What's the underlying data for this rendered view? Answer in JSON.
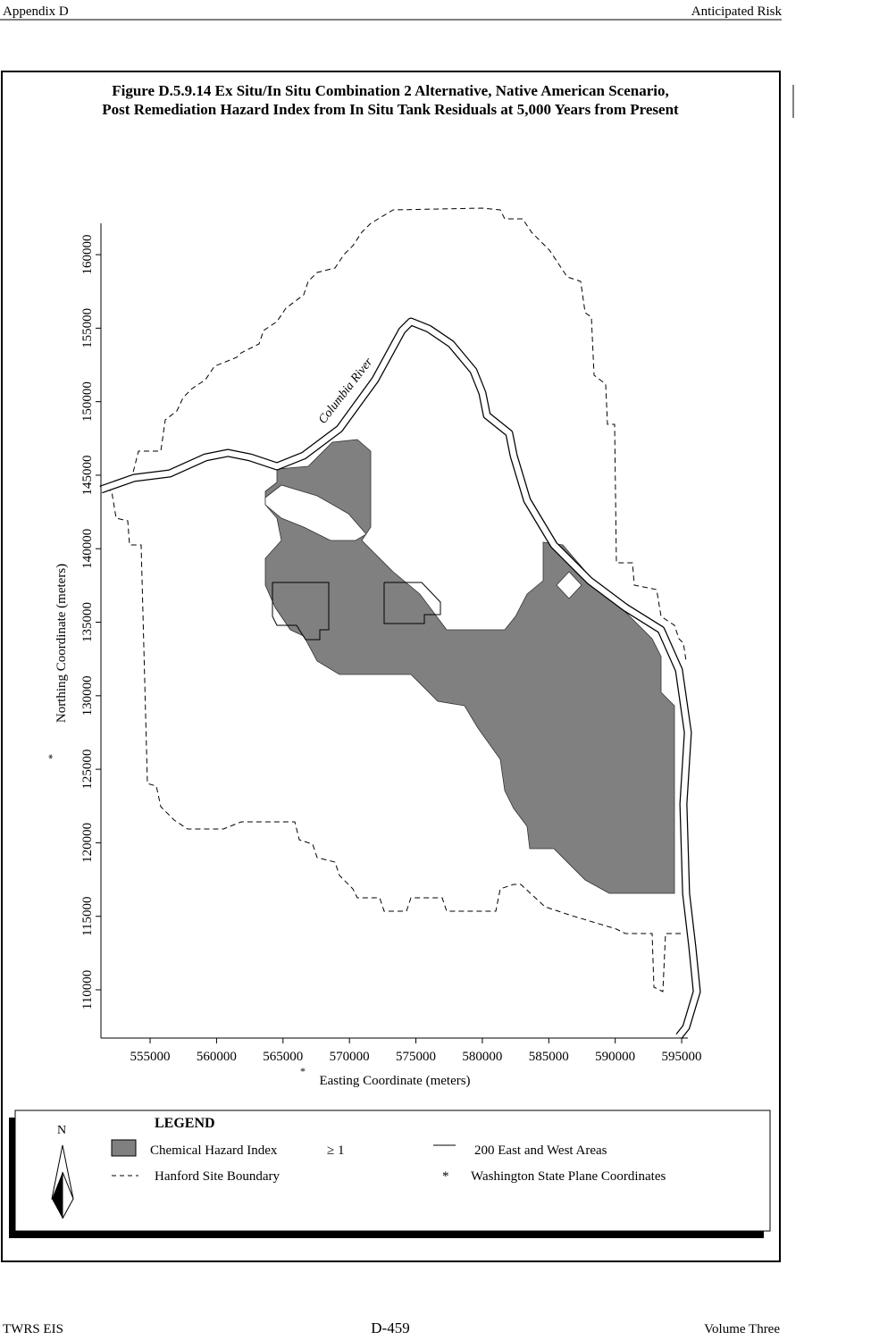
{
  "header": {
    "left": "Appendix D",
    "right": "Anticipated Risk"
  },
  "figure": {
    "title": [
      "Figure D.5.9.14  Ex Situ/In Situ Combination 2 Alternative, Native American Scenario,",
      "Post Remediation Hazard Index from In Situ Tank Residuals at 5,000 Years from Present"
    ],
    "river_label": "Columbia River",
    "x_axis": {
      "marker": "*",
      "label": "Easting Coordinate (meters)",
      "lim": [
        551300,
        595500
      ],
      "ticks": [
        555000,
        560000,
        565000,
        570000,
        575000,
        580000,
        585000,
        590000,
        595000
      ]
    },
    "y_axis": {
      "marker": "*",
      "label": "Northing Coordinate (meters)",
      "lim": [
        106720,
        162130
      ],
      "ticks": [
        110000,
        115000,
        120000,
        125000,
        130000,
        135000,
        140000,
        145000,
        150000,
        155000,
        160000
      ]
    }
  },
  "legend": {
    "title": "LEGEND",
    "north": "N",
    "hazard": "Chemical Hazard Index",
    "hazard_qualifier": "≥ 1",
    "areas": "200 East and West Areas",
    "boundary": "Hanford Site Boundary",
    "coord_marker": "*",
    "coords": "Washington State Plane Coordinates"
  },
  "footer": {
    "left": "TWRS EIS",
    "center": "D-459",
    "right": "Volume Three"
  }
}
